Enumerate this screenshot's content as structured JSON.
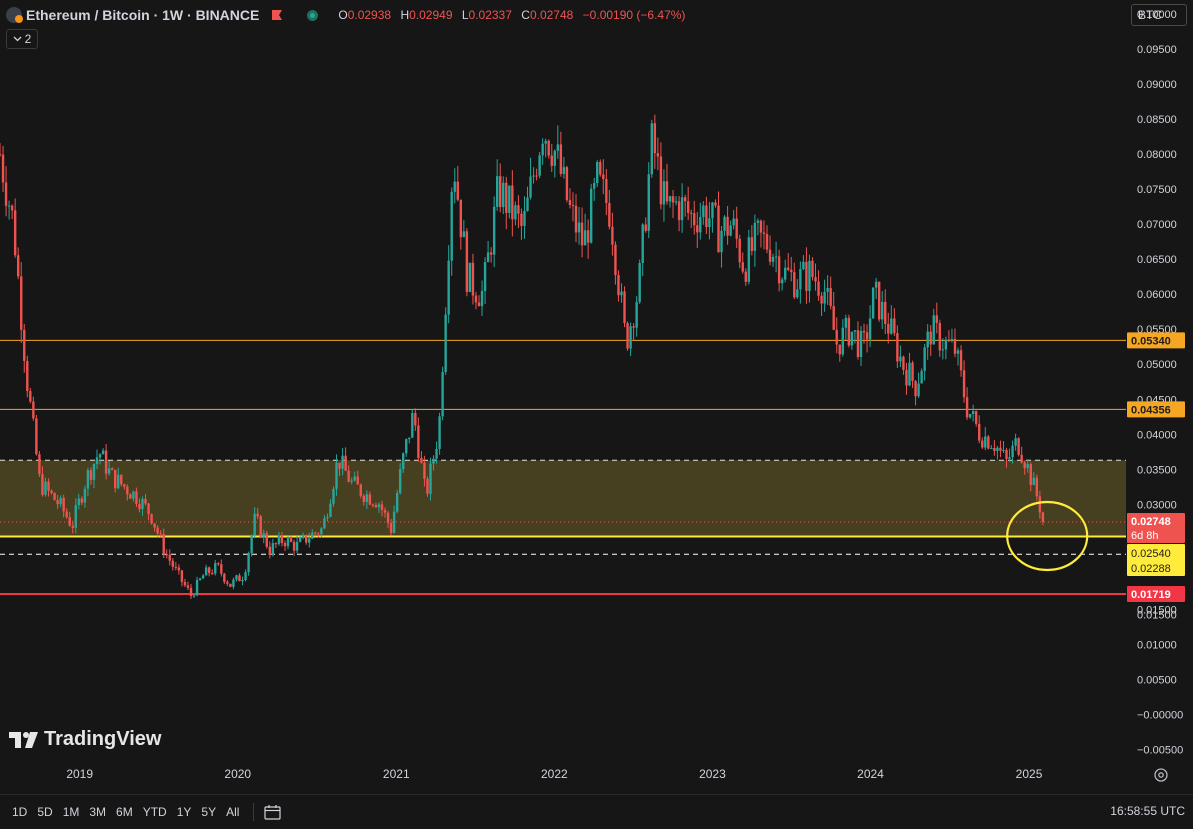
{
  "header": {
    "title": "Ethereum / Bitcoin · 1W · BINANCE",
    "open_label": "O",
    "open": "0.02938",
    "high_label": "H",
    "high": "0.02949",
    "low_label": "L",
    "low": "0.02337",
    "close_label": "C",
    "close": "0.02748",
    "change": "−0.00190 (−6.47%)",
    "indicators_count": "2"
  },
  "currency_button": "BTC",
  "brand": "TradingView",
  "bottom_bar": {
    "ranges": [
      "1D",
      "5D",
      "1M",
      "3M",
      "6M",
      "YTD",
      "1Y",
      "5Y",
      "All"
    ],
    "clock": "16:58:55 UTC"
  },
  "colors": {
    "background": "#161616",
    "up": "#26a69a",
    "down": "#ef5350",
    "orange_level": "#f5a623",
    "yellow_level": "#ffeb3b",
    "red_level": "#f23645",
    "zone_fill": "#4a4221"
  },
  "chart_data": {
    "type": "candlestick",
    "symbol": "ETH/BTC",
    "interval": "1W",
    "exchange": "BINANCE",
    "x_axis_ticks": [
      "2019",
      "2020",
      "2021",
      "2022",
      "2023",
      "2024",
      "2025"
    ],
    "y_axis_ticks": [
      "0.10000",
      "0.09500",
      "0.09000",
      "0.08500",
      "0.08000",
      "0.07500",
      "0.07000",
      "0.06500",
      "0.06000",
      "0.05500",
      "0.05000",
      "0.04500",
      "0.04000",
      "0.03500",
      "0.03000",
      "0.02500",
      "0.02000",
      "0.01500",
      "0.01000",
      "0.00500",
      "−0.00000",
      "−0.00500"
    ],
    "ylim": [
      -0.0065,
      0.102
    ],
    "price_path": [
      [
        "2018-07-01",
        0.08
      ],
      [
        "2018-08-01",
        0.07
      ],
      [
        "2018-09-01",
        0.048
      ],
      [
        "2018-10-01",
        0.033
      ],
      [
        "2018-11-15",
        0.03
      ],
      [
        "2018-12-15",
        0.027
      ],
      [
        "2019-01-15",
        0.0335
      ],
      [
        "2019-02-15",
        0.0375
      ],
      [
        "2019-03-15",
        0.034
      ],
      [
        "2019-04-15",
        0.0325
      ],
      [
        "2019-05-15",
        0.031
      ],
      [
        "2019-06-15",
        0.0285
      ],
      [
        "2019-07-15",
        0.0235
      ],
      [
        "2019-08-15",
        0.02
      ],
      [
        "2019-09-15",
        0.017
      ],
      [
        "2019-10-15",
        0.02
      ],
      [
        "2019-11-15",
        0.021
      ],
      [
        "2019-12-15",
        0.0185
      ],
      [
        "2020-01-15",
        0.02
      ],
      [
        "2020-02-10",
        0.028
      ],
      [
        "2020-03-15",
        0.0235
      ],
      [
        "2020-04-15",
        0.025
      ],
      [
        "2020-05-15",
        0.024
      ],
      [
        "2020-06-15",
        0.0255
      ],
      [
        "2020-07-15",
        0.0265
      ],
      [
        "2020-08-20",
        0.0365
      ],
      [
        "2020-09-20",
        0.033
      ],
      [
        "2020-10-20",
        0.0315
      ],
      [
        "2020-11-20",
        0.0305
      ],
      [
        "2020-12-20",
        0.0265
      ],
      [
        "2021-01-15",
        0.036
      ],
      [
        "2021-02-10",
        0.043
      ],
      [
        "2021-03-10",
        0.031
      ],
      [
        "2021-04-10",
        0.041
      ],
      [
        "2021-05-12",
        0.08
      ],
      [
        "2021-06-15",
        0.062
      ],
      [
        "2021-07-20",
        0.06
      ],
      [
        "2021-08-25",
        0.075
      ],
      [
        "2021-09-25",
        0.072
      ],
      [
        "2021-10-20",
        0.069
      ],
      [
        "2021-12-05",
        0.084
      ],
      [
        "2022-01-05",
        0.08
      ],
      [
        "2022-02-05",
        0.072
      ],
      [
        "2022-03-10",
        0.067
      ],
      [
        "2022-04-10",
        0.076
      ],
      [
        "2022-05-10",
        0.072
      ],
      [
        "2022-06-15",
        0.053
      ],
      [
        "2022-07-15",
        0.061
      ],
      [
        "2022-08-15",
        0.082
      ],
      [
        "2022-09-15",
        0.072
      ],
      [
        "2022-10-15",
        0.073
      ],
      [
        "2022-11-15",
        0.071
      ],
      [
        "2022-12-15",
        0.072
      ],
      [
        "2023-01-15",
        0.069
      ],
      [
        "2023-02-15",
        0.07
      ],
      [
        "2023-03-15",
        0.064
      ],
      [
        "2023-04-15",
        0.068
      ],
      [
        "2023-05-15",
        0.067
      ],
      [
        "2023-06-15",
        0.063
      ],
      [
        "2023-07-15",
        0.062
      ],
      [
        "2023-08-15",
        0.063
      ],
      [
        "2023-09-15",
        0.061
      ],
      [
        "2023-10-15",
        0.053
      ],
      [
        "2023-11-15",
        0.055
      ],
      [
        "2023-12-15",
        0.052
      ],
      [
        "2024-01-10",
        0.06
      ],
      [
        "2024-02-15",
        0.055
      ],
      [
        "2024-03-15",
        0.05
      ],
      [
        "2024-04-15",
        0.047
      ],
      [
        "2024-05-20",
        0.055
      ],
      [
        "2024-06-20",
        0.053
      ],
      [
        "2024-07-15",
        0.052
      ],
      [
        "2024-08-10",
        0.044
      ],
      [
        "2024-09-10",
        0.04
      ],
      [
        "2024-10-10",
        0.039
      ],
      [
        "2024-11-10",
        0.036
      ],
      [
        "2024-12-05",
        0.039
      ],
      [
        "2024-12-25",
        0.036
      ],
      [
        "2025-01-20",
        0.031
      ],
      [
        "2025-02-05",
        0.02748
      ]
    ],
    "last_close": 0.02748,
    "levels": [
      {
        "value": 0.0534,
        "label": "0.05340",
        "style": "solid",
        "color": "#f5a623"
      },
      {
        "value": 0.04356,
        "label": "0.04356",
        "style": "solid",
        "color": "#f5a623"
      },
      {
        "value": 0.0254,
        "label": "0.02540",
        "style": "solid",
        "color": "#ffeb3b"
      },
      {
        "value": 0.02288,
        "label": "0.02288",
        "style": "dashed",
        "color": "#ffffff"
      },
      {
        "value": 0.01719,
        "label": "0.01719",
        "style": "solid",
        "color": "#f23645"
      }
    ],
    "zone": {
      "from": 0.0254,
      "to": 0.0363
    },
    "zone_top_line": {
      "value": 0.0363,
      "style": "dashed"
    },
    "last_price_label": "0.02748",
    "countdown_label": "6d 8h",
    "annotation": "circle around latest candles",
    "grid": false
  }
}
